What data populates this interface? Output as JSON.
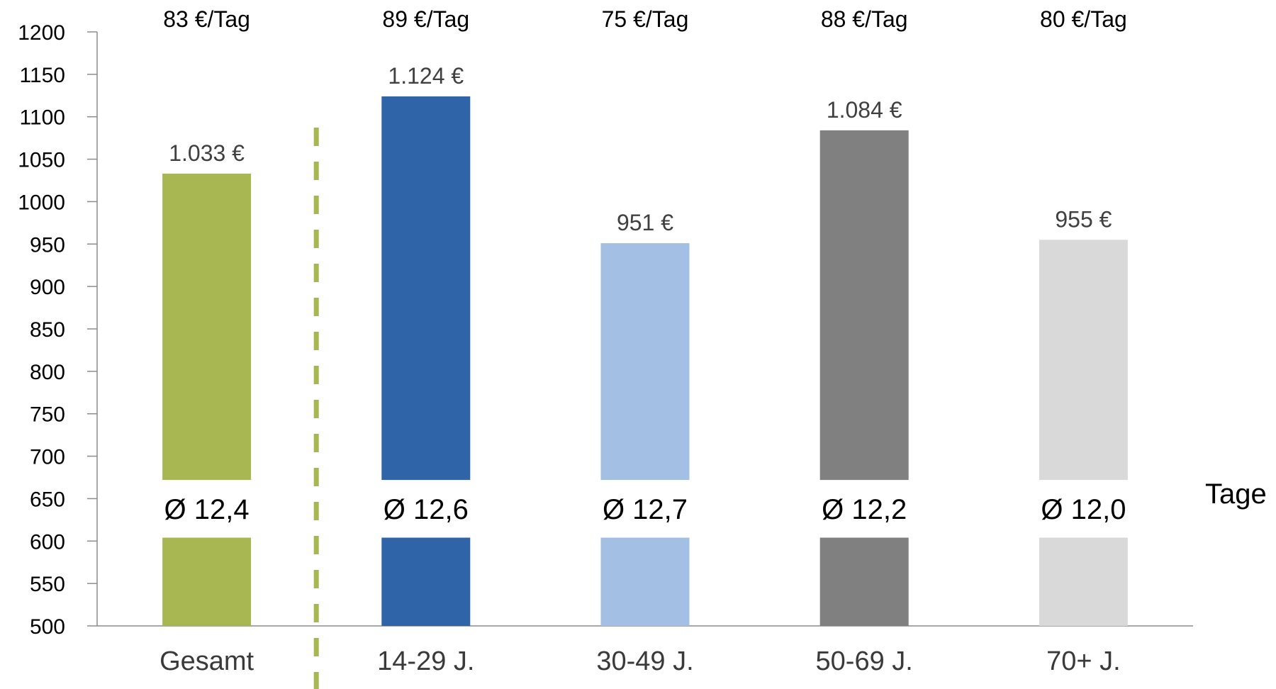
{
  "chart_data": {
    "type": "bar",
    "categories": [
      "Gesamt",
      "14-29 J.",
      "30-49 J.",
      "50-69 J.",
      "70+ J."
    ],
    "values": [
      1033,
      1124,
      951,
      1084,
      955
    ],
    "value_labels": [
      "1.033 €",
      "1.124 €",
      "951 €",
      "1.084 €",
      "955 €"
    ],
    "rate_labels": [
      "83 €/Tag",
      "89 €/Tag",
      "75 €/Tag",
      "88 €/Tag",
      "80 €/Tag"
    ],
    "avg_labels": [
      "Ø 12,4",
      "Ø 12,6",
      "Ø 12,7",
      "Ø 12,2",
      "Ø 12,0"
    ],
    "avg_unit": "Tage",
    "colors": [
      "#a9b752",
      "#3064a8",
      "#a3bfe4",
      "#808080",
      "#d9d9d9"
    ],
    "separator_color": "#a9b752",
    "ylim": [
      500,
      1200
    ],
    "yticks": [
      500,
      550,
      600,
      650,
      700,
      750,
      800,
      850,
      900,
      950,
      1000,
      1050,
      1100,
      1150,
      1200
    ],
    "grid": false,
    "xlabel": "",
    "ylabel": "",
    "title": ""
  }
}
